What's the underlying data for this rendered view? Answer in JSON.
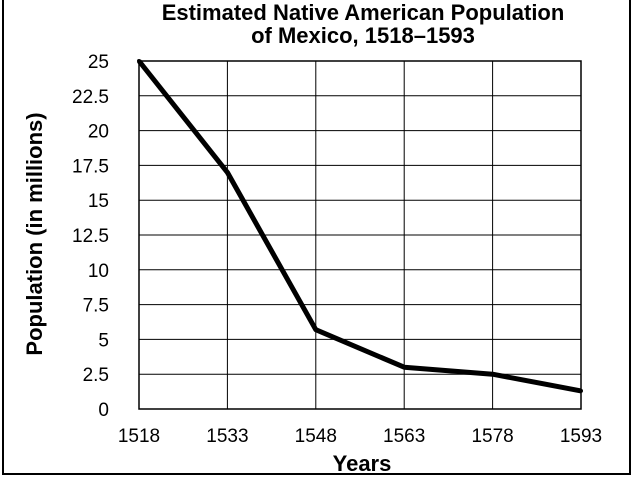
{
  "chart_data": {
    "type": "line",
    "title_line1": "Estimated Native American Population",
    "title_line2": "of Mexico, 1518–1593",
    "xlabel": "Years",
    "ylabel": "Population (in millions)",
    "x": [
      1518,
      1533,
      1548,
      1563,
      1578,
      1593
    ],
    "x_tick_labels": [
      "1518",
      "1533",
      "1548",
      "1563",
      "1578",
      "1593"
    ],
    "y_tick_labels": [
      "25",
      "22.5",
      "20",
      "17.5",
      "15",
      "12.5",
      "10",
      "7.5",
      "5",
      "2.5",
      "0"
    ],
    "y_ticks": [
      25,
      22.5,
      20,
      17.5,
      15,
      12.5,
      10,
      7.5,
      5,
      2.5,
      0
    ],
    "ylim": [
      0,
      25
    ],
    "xlim": [
      1518,
      1593
    ],
    "series": [
      {
        "values": [
          25,
          17,
          5.7,
          3.0,
          2.5,
          1.3
        ]
      }
    ],
    "grid": true,
    "colors": {
      "line": "#000000",
      "grid": "#000000",
      "background": "#ffffff"
    }
  }
}
